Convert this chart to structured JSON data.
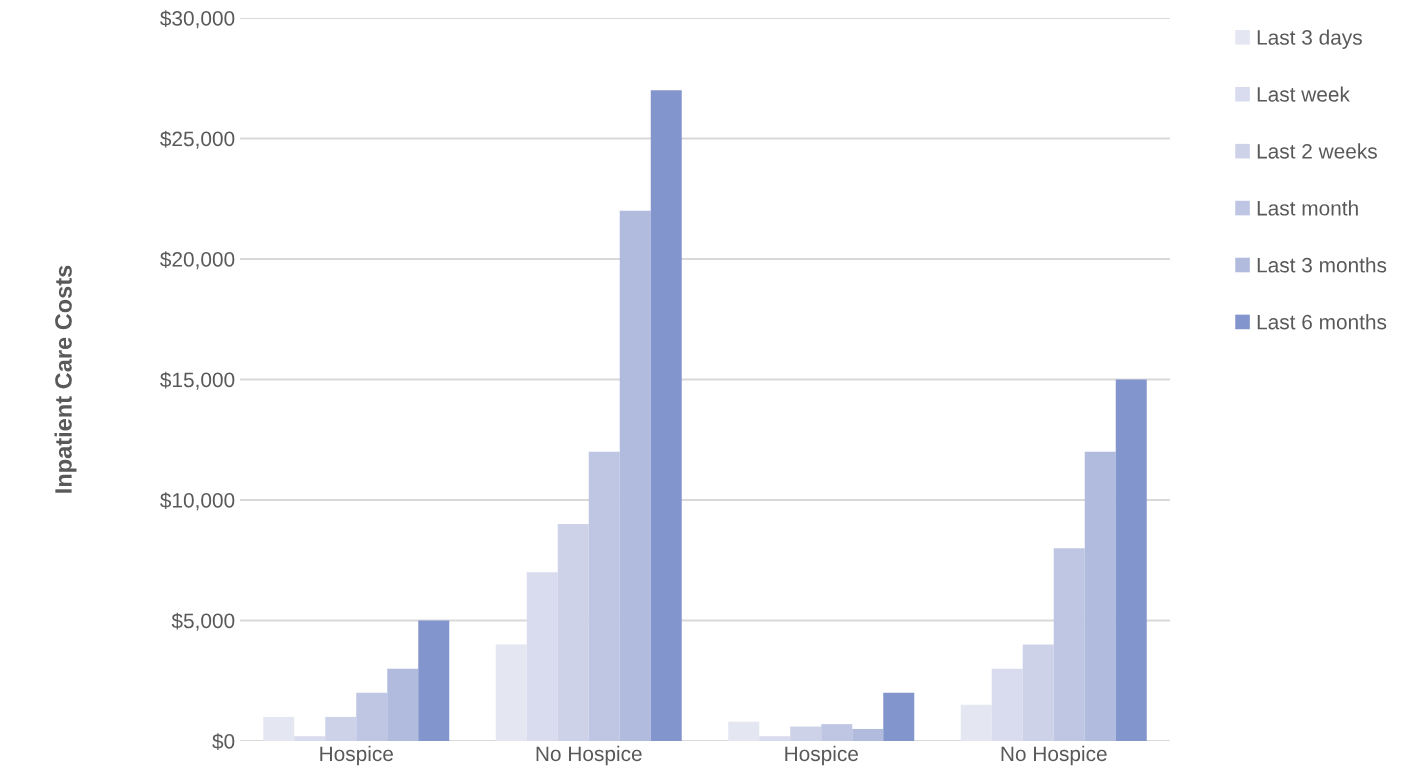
{
  "chart_data": {
    "type": "bar",
    "ylabel": "Inpatient Care Costs",
    "categories": [
      "Hospice",
      "No Hospice",
      "Hospice",
      "No Hospice"
    ],
    "series": [
      {
        "name": "Last 3 days",
        "color": "#e4e6f2",
        "values": [
          1000,
          4000,
          800,
          1500
        ]
      },
      {
        "name": "Last week",
        "color": "#d9dcee",
        "values": [
          200,
          7000,
          200,
          3000
        ]
      },
      {
        "name": "Last 2 weeks",
        "color": "#cdd2e8",
        "values": [
          1000,
          9000,
          600,
          4000
        ]
      },
      {
        "name": "Last month",
        "color": "#bfc6e4",
        "values": [
          2000,
          12000,
          700,
          8000
        ]
      },
      {
        "name": "Last 3 months",
        "color": "#b1bbde",
        "values": [
          3000,
          22000,
          500,
          12000
        ]
      },
      {
        "name": "Last 6 months",
        "color": "#8395cd",
        "values": [
          5000,
          27000,
          2000,
          15000
        ]
      }
    ],
    "ylim": [
      0,
      30000
    ],
    "yticks": [
      {
        "value": 0,
        "label": "$0"
      },
      {
        "value": 5000,
        "label": "$5,000"
      },
      {
        "value": 10000,
        "label": "$10,000"
      },
      {
        "value": 15000,
        "label": "$15,000"
      },
      {
        "value": 20000,
        "label": "$20,000"
      },
      {
        "value": 25000,
        "label": "$25,000"
      },
      {
        "value": 30000,
        "label": "$30,000"
      }
    ],
    "grid": "y",
    "legend": "top right"
  }
}
